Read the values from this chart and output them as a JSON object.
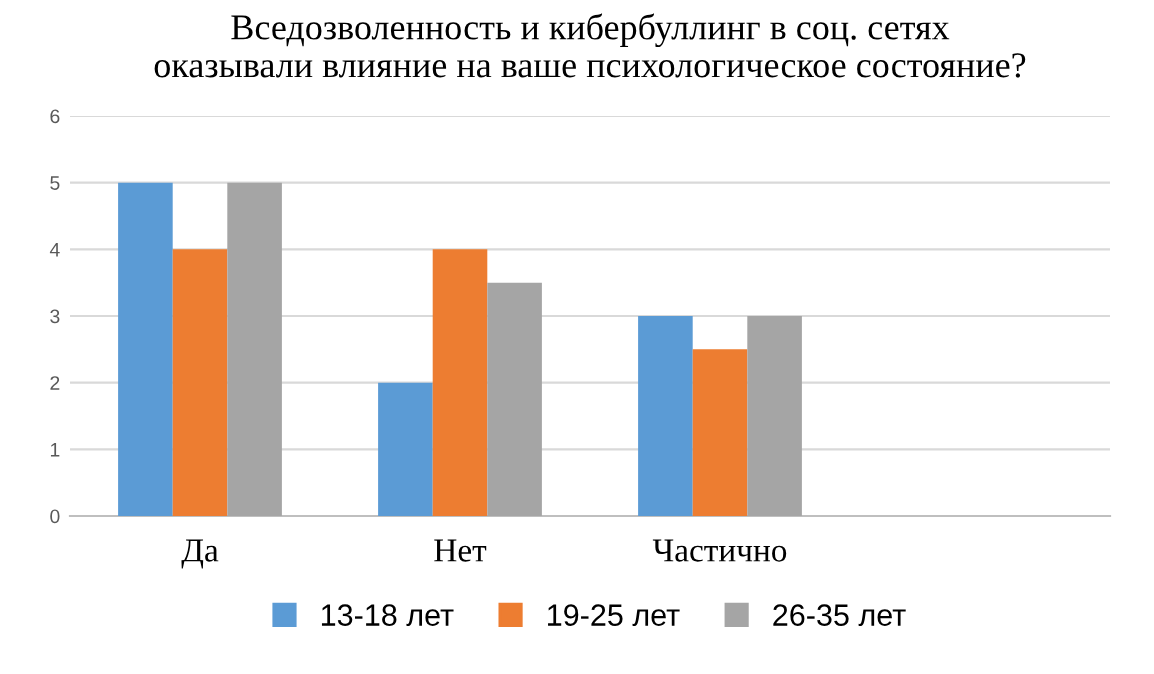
{
  "chart_data": {
    "type": "bar",
    "title": "Вседозволенность и кибербуллинг в соц. сетях\nоказывали влияние на ваше психологическое состояние?",
    "categories": [
      "Да",
      "Нет",
      "Частично",
      null
    ],
    "series": [
      {
        "name": "13-18 лет",
        "color": "#5b9bd5",
        "values": [
          5,
          2,
          3,
          null
        ]
      },
      {
        "name": "19-25 лет",
        "color": "#ed7d31",
        "values": [
          4,
          4,
          2.5,
          null
        ]
      },
      {
        "name": "26-35 лет",
        "color": "#a5a5a5",
        "values": [
          5,
          3.5,
          3,
          null
        ]
      }
    ],
    "ylim": [
      0,
      6
    ],
    "yticks": [
      0,
      1,
      2,
      3,
      4,
      5,
      6
    ],
    "grid": "y",
    "legend": "bottom"
  }
}
